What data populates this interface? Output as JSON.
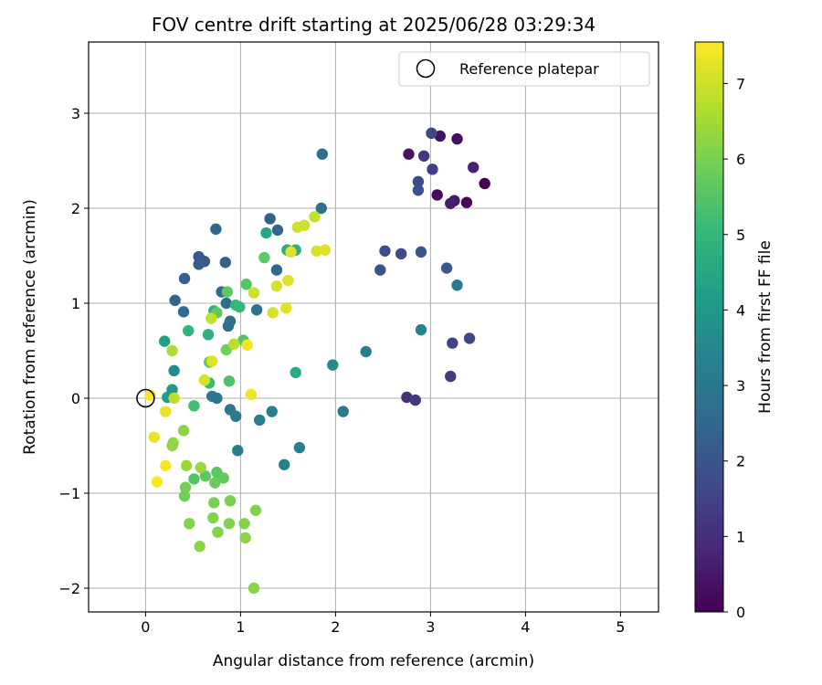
{
  "chart_data": {
    "type": "scatter",
    "title": "FOV centre drift starting at 2025/06/28 03:29:34",
    "xlabel": "Angular distance from reference (arcmin)",
    "ylabel": "Rotation from reference (arcmin)",
    "xlim": [
      -0.6,
      5.4
    ],
    "ylim": [
      -2.25,
      3.75
    ],
    "xticks": [
      0,
      1,
      2,
      3,
      4,
      5
    ],
    "yticks": [
      -2,
      -1,
      0,
      1,
      2,
      3
    ],
    "grid": true,
    "legend": {
      "position": "top-right",
      "entries": [
        {
          "label": "Reference platepar",
          "marker": "open-circle"
        }
      ]
    },
    "reference_point": {
      "x": 0,
      "y": 0
    },
    "colorbar": {
      "label": "Hours from first FF file",
      "colormap": "viridis",
      "range": [
        0,
        7.55
      ],
      "ticks": [
        0,
        1,
        2,
        3,
        4,
        5,
        6,
        7
      ]
    },
    "points": [
      {
        "x": 3.57,
        "y": 2.26,
        "c": 0.0
      },
      {
        "x": 3.38,
        "y": 2.06,
        "c": 0.1
      },
      {
        "x": 3.07,
        "y": 2.14,
        "c": 0.2
      },
      {
        "x": 3.1,
        "y": 2.76,
        "c": 0.3
      },
      {
        "x": 3.28,
        "y": 2.73,
        "c": 0.3
      },
      {
        "x": 2.77,
        "y": 2.57,
        "c": 0.4
      },
      {
        "x": 3.25,
        "y": 2.08,
        "c": 0.5
      },
      {
        "x": 3.21,
        "y": 2.05,
        "c": 0.6
      },
      {
        "x": 3.45,
        "y": 2.43,
        "c": 0.7
      },
      {
        "x": 2.93,
        "y": 2.55,
        "c": 1.2
      },
      {
        "x": 3.02,
        "y": 2.41,
        "c": 1.4
      },
      {
        "x": 3.01,
        "y": 2.79,
        "c": 1.6
      },
      {
        "x": 2.87,
        "y": 2.28,
        "c": 1.8
      },
      {
        "x": 2.87,
        "y": 2.19,
        "c": 1.9
      },
      {
        "x": 2.75,
        "y": 0.01,
        "c": 1.0
      },
      {
        "x": 2.84,
        "y": -0.02,
        "c": 1.2
      },
      {
        "x": 3.21,
        "y": 0.23,
        "c": 1.3
      },
      {
        "x": 3.23,
        "y": 0.58,
        "c": 1.5
      },
      {
        "x": 3.41,
        "y": 0.63,
        "c": 1.6
      },
      {
        "x": 2.69,
        "y": 1.52,
        "c": 1.7
      },
      {
        "x": 2.52,
        "y": 1.55,
        "c": 1.8
      },
      {
        "x": 2.47,
        "y": 1.35,
        "c": 1.9
      },
      {
        "x": 2.9,
        "y": 1.54,
        "c": 2.0
      },
      {
        "x": 3.17,
        "y": 1.37,
        "c": 2.1
      },
      {
        "x": 1.86,
        "y": 2.57,
        "c": 2.8
      },
      {
        "x": 1.85,
        "y": 2.0,
        "c": 2.9
      },
      {
        "x": 3.28,
        "y": 1.19,
        "c": 3.1
      },
      {
        "x": 2.9,
        "y": 0.72,
        "c": 3.4
      },
      {
        "x": 2.32,
        "y": 0.49,
        "c": 3.2
      },
      {
        "x": 1.97,
        "y": 0.35,
        "c": 3.6
      },
      {
        "x": 2.08,
        "y": -0.14,
        "c": 3.1
      },
      {
        "x": 1.31,
        "y": 1.89,
        "c": 2.3
      },
      {
        "x": 1.39,
        "y": 1.77,
        "c": 2.4
      },
      {
        "x": 0.74,
        "y": 1.78,
        "c": 2.5
      },
      {
        "x": 0.56,
        "y": 1.49,
        "c": 2.0
      },
      {
        "x": 0.62,
        "y": 1.44,
        "c": 2.1
      },
      {
        "x": 0.56,
        "y": 1.41,
        "c": 2.2
      },
      {
        "x": 0.84,
        "y": 1.43,
        "c": 2.3
      },
      {
        "x": 0.41,
        "y": 1.26,
        "c": 2.2
      },
      {
        "x": 0.31,
        "y": 1.03,
        "c": 2.4
      },
      {
        "x": 0.4,
        "y": 0.91,
        "c": 2.6
      },
      {
        "x": 1.38,
        "y": 1.35,
        "c": 2.5
      },
      {
        "x": 0.8,
        "y": 1.12,
        "c": 2.6
      },
      {
        "x": 0.85,
        "y": 1.0,
        "c": 2.7
      },
      {
        "x": 0.89,
        "y": 0.81,
        "c": 2.7
      },
      {
        "x": 0.87,
        "y": 0.76,
        "c": 2.7
      },
      {
        "x": 1.17,
        "y": 0.93,
        "c": 2.8
      },
      {
        "x": 0.7,
        "y": 0.02,
        "c": 3.0
      },
      {
        "x": 0.75,
        "y": 0.0,
        "c": 3.0
      },
      {
        "x": 0.89,
        "y": -0.12,
        "c": 3.1
      },
      {
        "x": 0.95,
        "y": -0.19,
        "c": 3.1
      },
      {
        "x": 1.2,
        "y": -0.23,
        "c": 3.2
      },
      {
        "x": 1.33,
        "y": -0.14,
        "c": 3.3
      },
      {
        "x": 0.97,
        "y": -0.55,
        "c": 3.2
      },
      {
        "x": 1.62,
        "y": -0.52,
        "c": 3.3
      },
      {
        "x": 1.46,
        "y": -0.7,
        "c": 3.3
      },
      {
        "x": 0.3,
        "y": 0.29,
        "c": 3.7
      },
      {
        "x": 0.28,
        "y": 0.09,
        "c": 4.0
      },
      {
        "x": 0.23,
        "y": 0.01,
        "c": 4.2
      },
      {
        "x": 0.2,
        "y": 0.6,
        "c": 4.3
      },
      {
        "x": 1.27,
        "y": 1.74,
        "c": 4.5
      },
      {
        "x": 1.49,
        "y": 1.56,
        "c": 4.6
      },
      {
        "x": 1.58,
        "y": 1.56,
        "c": 4.8
      },
      {
        "x": 0.66,
        "y": 0.67,
        "c": 4.8
      },
      {
        "x": 0.45,
        "y": 0.71,
        "c": 4.9
      },
      {
        "x": 0.72,
        "y": 0.92,
        "c": 4.9
      },
      {
        "x": 0.95,
        "y": 0.98,
        "c": 5.0
      },
      {
        "x": 0.99,
        "y": 0.96,
        "c": 5.1
      },
      {
        "x": 1.58,
        "y": 0.27,
        "c": 4.6
      },
      {
        "x": 0.67,
        "y": 0.16,
        "c": 5.1
      },
      {
        "x": 0.51,
        "y": -0.08,
        "c": 5.2
      },
      {
        "x": 0.88,
        "y": 0.18,
        "c": 5.4
      },
      {
        "x": 1.03,
        "y": 0.61,
        "c": 5.5
      },
      {
        "x": 1.06,
        "y": 1.2,
        "c": 5.5
      },
      {
        "x": 1.25,
        "y": 1.48,
        "c": 5.6
      },
      {
        "x": 0.86,
        "y": 1.12,
        "c": 5.6
      },
      {
        "x": 0.75,
        "y": 0.9,
        "c": 5.7
      },
      {
        "x": 0.67,
        "y": 0.38,
        "c": 5.7
      },
      {
        "x": 0.85,
        "y": 0.51,
        "c": 5.9
      },
      {
        "x": 0.51,
        "y": -0.85,
        "c": 5.5
      },
      {
        "x": 0.63,
        "y": -0.82,
        "c": 5.6
      },
      {
        "x": 0.75,
        "y": -0.78,
        "c": 5.6
      },
      {
        "x": 0.82,
        "y": -0.84,
        "c": 5.7
      },
      {
        "x": 0.73,
        "y": -0.89,
        "c": 5.8
      },
      {
        "x": 0.42,
        "y": -0.94,
        "c": 5.9
      },
      {
        "x": 0.41,
        "y": -1.03,
        "c": 5.9
      },
      {
        "x": 0.72,
        "y": -1.1,
        "c": 6.0
      },
      {
        "x": 0.89,
        "y": -1.08,
        "c": 6.0
      },
      {
        "x": 0.71,
        "y": -1.26,
        "c": 6.1
      },
      {
        "x": 0.46,
        "y": -1.32,
        "c": 6.1
      },
      {
        "x": 0.76,
        "y": -1.41,
        "c": 6.1
      },
      {
        "x": 0.88,
        "y": -1.32,
        "c": 6.1
      },
      {
        "x": 1.04,
        "y": -1.32,
        "c": 6.1
      },
      {
        "x": 1.16,
        "y": -1.18,
        "c": 6.1
      },
      {
        "x": 1.05,
        "y": -1.47,
        "c": 6.2
      },
      {
        "x": 0.57,
        "y": -1.56,
        "c": 6.2
      },
      {
        "x": 1.14,
        "y": -2.0,
        "c": 6.2
      },
      {
        "x": 0.4,
        "y": -0.34,
        "c": 6.2
      },
      {
        "x": 0.29,
        "y": -0.47,
        "c": 6.3
      },
      {
        "x": 0.28,
        "y": -0.5,
        "c": 6.3
      },
      {
        "x": 0.43,
        "y": -0.71,
        "c": 6.4
      },
      {
        "x": 0.58,
        "y": -0.73,
        "c": 6.4
      },
      {
        "x": 0.28,
        "y": 0.5,
        "c": 6.6
      },
      {
        "x": 0.69,
        "y": 0.84,
        "c": 6.9
      },
      {
        "x": 0.93,
        "y": 0.57,
        "c": 6.8
      },
      {
        "x": 1.14,
        "y": 1.11,
        "c": 7.0
      },
      {
        "x": 1.38,
        "y": 1.18,
        "c": 7.1
      },
      {
        "x": 1.48,
        "y": 0.95,
        "c": 7.2
      },
      {
        "x": 1.34,
        "y": 0.9,
        "c": 7.1
      },
      {
        "x": 1.5,
        "y": 1.24,
        "c": 7.2
      },
      {
        "x": 1.6,
        "y": 1.8,
        "c": 7.0
      },
      {
        "x": 1.67,
        "y": 1.82,
        "c": 7.0
      },
      {
        "x": 1.78,
        "y": 1.91,
        "c": 6.9
      },
      {
        "x": 1.53,
        "y": 1.54,
        "c": 7.2
      },
      {
        "x": 1.8,
        "y": 1.55,
        "c": 7.1
      },
      {
        "x": 1.89,
        "y": 1.56,
        "c": 7.2
      },
      {
        "x": 0.3,
        "y": 0.0,
        "c": 6.8
      },
      {
        "x": 0.7,
        "y": 0.39,
        "c": 7.2
      },
      {
        "x": 1.07,
        "y": 0.56,
        "c": 7.4
      },
      {
        "x": 1.11,
        "y": 0.04,
        "c": 7.4
      },
      {
        "x": 0.62,
        "y": 0.19,
        "c": 7.1
      },
      {
        "x": 0.05,
        "y": 0.03,
        "c": 7.5
      },
      {
        "x": 0.21,
        "y": -0.14,
        "c": 7.3
      },
      {
        "x": 0.09,
        "y": -0.41,
        "c": 7.3
      },
      {
        "x": 0.21,
        "y": -0.71,
        "c": 7.5
      },
      {
        "x": 0.12,
        "y": -0.88,
        "c": 7.5
      }
    ]
  }
}
